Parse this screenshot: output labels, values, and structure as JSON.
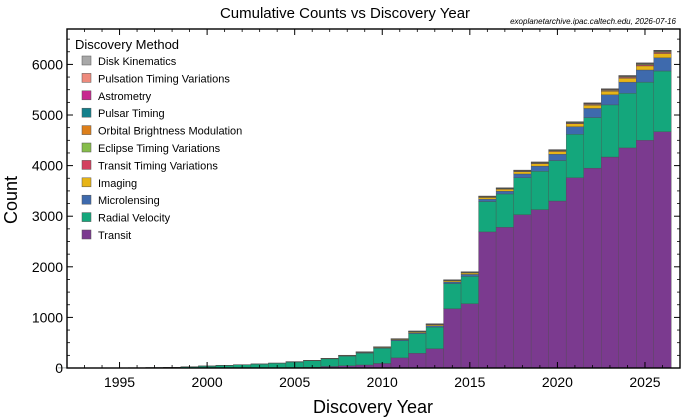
{
  "source_note": "exoplanetarchive.ipac.caltech.edu, 2026-07-16",
  "chart_data": {
    "type": "bar",
    "stacked": true,
    "title": "Cumulative Counts vs Discovery Year",
    "xlabel": "Discovery Year",
    "ylabel": "Count",
    "xlim": [
      1992,
      2027
    ],
    "ylim": [
      0,
      6700
    ],
    "xticks": [
      1995,
      2000,
      2005,
      2010,
      2015,
      2020,
      2025
    ],
    "yticks": [
      0,
      1000,
      2000,
      3000,
      4000,
      5000,
      6000
    ],
    "legend_title": "Discovery Method",
    "legend_position": "top-left",
    "grid": false,
    "categories": [
      1992,
      1993,
      1994,
      1995,
      1996,
      1997,
      1998,
      1999,
      2000,
      2001,
      2002,
      2003,
      2004,
      2005,
      2006,
      2007,
      2008,
      2009,
      2010,
      2011,
      2012,
      2013,
      2014,
      2015,
      2016,
      2017,
      2018,
      2019,
      2020,
      2021,
      2022,
      2023,
      2024,
      2025,
      2026
    ],
    "series": [
      {
        "name": "Transit",
        "color": "#7b3a8f",
        "values": [
          0,
          0,
          0,
          0,
          0,
          0,
          0,
          0,
          0,
          0,
          1,
          2,
          5,
          10,
          14,
          30,
          45,
          60,
          90,
          200,
          290,
          380,
          1170,
          1270,
          2690,
          2780,
          3030,
          3130,
          3300,
          3760,
          3950,
          4170,
          4350,
          4500,
          4670
        ]
      },
      {
        "name": "Radial Velocity",
        "color": "#14a77c",
        "values": [
          0,
          0,
          0,
          2,
          5,
          8,
          13,
          23,
          38,
          50,
          62,
          75,
          88,
          108,
          128,
          150,
          190,
          235,
          300,
          340,
          390,
          430,
          500,
          540,
          600,
          660,
          730,
          760,
          800,
          860,
          1000,
          1030,
          1080,
          1150,
          1200
        ]
      },
      {
        "name": "Microlensing",
        "color": "#3e6aad",
        "values": [
          0,
          0,
          0,
          0,
          0,
          0,
          0,
          0,
          0,
          0,
          0,
          0,
          1,
          2,
          4,
          5,
          8,
          10,
          12,
          16,
          20,
          26,
          30,
          40,
          48,
          55,
          75,
          100,
          125,
          150,
          180,
          200,
          220,
          240,
          260
        ]
      },
      {
        "name": "Imaging",
        "color": "#e7b416",
        "values": [
          0,
          0,
          0,
          0,
          0,
          0,
          0,
          0,
          0,
          0,
          0,
          0,
          0,
          2,
          3,
          4,
          6,
          9,
          12,
          14,
          17,
          20,
          22,
          28,
          33,
          38,
          45,
          50,
          55,
          60,
          65,
          70,
          76,
          80,
          86
        ]
      },
      {
        "name": "Transit Timing Variations",
        "color": "#d3405f",
        "values": [
          0,
          0,
          0,
          0,
          0,
          0,
          0,
          0,
          0,
          0,
          0,
          0,
          0,
          0,
          0,
          0,
          0,
          0,
          0,
          1,
          2,
          4,
          5,
          6,
          7,
          8,
          9,
          10,
          11,
          12,
          14,
          15,
          18,
          20,
          22
        ]
      },
      {
        "name": "Eclipse Timing Variations",
        "color": "#86bd4b",
        "values": [
          0,
          0,
          0,
          0,
          0,
          0,
          0,
          0,
          0,
          0,
          0,
          0,
          0,
          0,
          0,
          0,
          0,
          1,
          2,
          3,
          4,
          5,
          6,
          7,
          8,
          8,
          9,
          9,
          10,
          11,
          12,
          13,
          15,
          16,
          17
        ]
      },
      {
        "name": "Orbital Brightness Modulation",
        "color": "#dd7f1a",
        "values": [
          0,
          0,
          0,
          0,
          0,
          0,
          0,
          0,
          0,
          0,
          0,
          0,
          0,
          0,
          0,
          0,
          0,
          0,
          0,
          1,
          3,
          4,
          5,
          5,
          6,
          6,
          6,
          6,
          7,
          7,
          8,
          8,
          9,
          9,
          9
        ]
      },
      {
        "name": "Pulsar Timing",
        "color": "#14808c",
        "values": [
          2,
          3,
          3,
          3,
          3,
          3,
          3,
          3,
          3,
          3,
          3,
          4,
          4,
          4,
          4,
          4,
          4,
          4,
          4,
          5,
          5,
          5,
          5,
          5,
          5,
          6,
          6,
          6,
          6,
          6,
          7,
          7,
          7,
          8,
          8
        ]
      },
      {
        "name": "Astrometry",
        "color": "#c7288f",
        "values": [
          0,
          0,
          0,
          0,
          0,
          0,
          0,
          0,
          0,
          0,
          0,
          0,
          0,
          0,
          0,
          0,
          0,
          0,
          0,
          0,
          0,
          0,
          0,
          0,
          0,
          0,
          0,
          0,
          1,
          1,
          2,
          2,
          3,
          4,
          5
        ]
      },
      {
        "name": "Pulsation Timing Variations",
        "color": "#ee8a7c",
        "values": [
          0,
          0,
          0,
          0,
          0,
          0,
          0,
          1,
          1,
          1,
          1,
          1,
          1,
          1,
          1,
          1,
          1,
          1,
          1,
          1,
          1,
          1,
          1,
          1,
          2,
          2,
          2,
          2,
          2,
          2,
          2,
          2,
          2,
          2,
          2
        ]
      },
      {
        "name": "Disk Kinematics",
        "color": "#a8a8a8",
        "values": [
          0,
          0,
          0,
          0,
          0,
          0,
          0,
          0,
          0,
          0,
          0,
          0,
          0,
          0,
          0,
          0,
          0,
          0,
          0,
          0,
          0,
          0,
          0,
          0,
          0,
          0,
          0,
          0,
          0,
          0,
          0,
          1,
          1,
          1,
          1
        ]
      }
    ],
    "legend_order": [
      "Disk Kinematics",
      "Pulsation Timing Variations",
      "Astrometry",
      "Pulsar Timing",
      "Orbital Brightness Modulation",
      "Eclipse Timing Variations",
      "Transit Timing Variations",
      "Imaging",
      "Microlensing",
      "Radial Velocity",
      "Transit"
    ]
  }
}
